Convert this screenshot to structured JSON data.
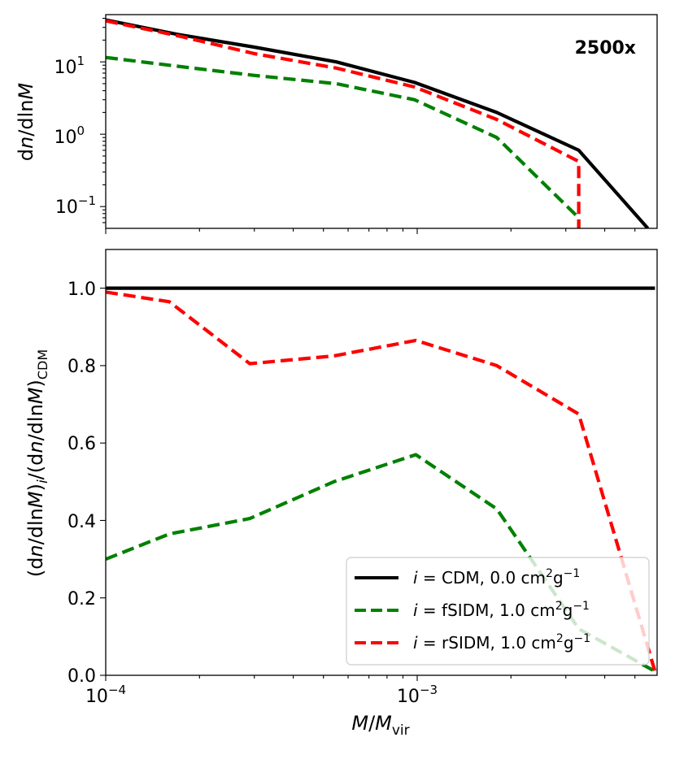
{
  "annotation": "2500x",
  "ticks": {
    "top_y_base": "10",
    "top_y_exps": [
      "1",
      "0",
      "−1"
    ],
    "x_base": "10",
    "x_exps": [
      "−4",
      "−3"
    ],
    "bottom_y": [
      "0.0",
      "0.2",
      "0.4",
      "0.6",
      "0.8",
      "1.0"
    ]
  },
  "labels": {
    "top_y": {
      "d1": "d",
      "n": "n",
      "mid": "/dln",
      "M": "M"
    },
    "bottom_y": {
      "p1": "(d",
      "n1": "n",
      "p2": "/dln",
      "M1": "M",
      "p3": ")",
      "i": "i",
      "p4": "/(d",
      "n2": "n",
      "p5": "/dln",
      "M2": "M",
      "p6": ")",
      "cdm": "CDM"
    },
    "x": {
      "M": "M",
      "slash": "/",
      "Mvir": "M",
      "vir": "vir"
    }
  },
  "legend": [
    {
      "prefix": "i",
      "eq": " =  ",
      "body": "CDM, 0.0 cm",
      "sup1": "2",
      "g": "g",
      "sup2": "−1",
      "color": "#000000",
      "dashed": false
    },
    {
      "prefix": "i",
      "eq": " =  ",
      "body": "fSIDM, 1.0 cm",
      "sup1": "2",
      "g": "g",
      "sup2": "−1",
      "color": "#008000",
      "dashed": true
    },
    {
      "prefix": "i",
      "eq": " =  ",
      "body": "rSIDM, 1.0 cm",
      "sup1": "2",
      "g": "g",
      "sup2": "−1",
      "color": "#ff0000",
      "dashed": true
    }
  ],
  "chart_data": [
    {
      "type": "line",
      "xscale": "log",
      "yscale": "log",
      "xlim": [
        0.0001,
        0.0058
      ],
      "ylim": [
        0.05,
        45
      ],
      "xlabel": "",
      "ylabel": "dn/dlnM",
      "series": [
        {
          "name": "i = CDM, 0.0 cm2g−1",
          "color": "#000000",
          "dashed": false,
          "x": [
            0.0001,
            0.00017,
            0.0003,
            0.00055,
            0.00098,
            0.0018,
            0.0033,
            0.0055
          ],
          "y": [
            38,
            24,
            16,
            10,
            5.2,
            2.0,
            0.6,
            0.05
          ]
        },
        {
          "name": "i = fSIDM, 1.0 cm2g−1",
          "color": "#008000",
          "dashed": true,
          "x": [
            0.0001,
            0.00017,
            0.0003,
            0.00055,
            0.00098,
            0.0018,
            0.0033,
            0.0033
          ],
          "y": [
            11.5,
            8.7,
            6.5,
            5.0,
            3.0,
            0.9,
            0.07,
            0.05
          ]
        },
        {
          "name": "i = rSIDM, 1.0 cm2g−1",
          "color": "#ff0000",
          "dashed": true,
          "x": [
            0.0001,
            0.00017,
            0.0003,
            0.00055,
            0.00098,
            0.0018,
            0.0033,
            0.0033
          ],
          "y": [
            37,
            23,
            13,
            8.2,
            4.5,
            1.6,
            0.42,
            0.05
          ]
        }
      ]
    },
    {
      "type": "line",
      "xscale": "log",
      "yscale": "linear",
      "xlim": [
        0.0001,
        0.0058
      ],
      "ylim": [
        0.0,
        1.1
      ],
      "xlabel": "M/Mvir",
      "ylabel": "(dn/dlnM)i/(dn/dlnM)CDM",
      "legend_position": "lower right",
      "series": [
        {
          "name": "i = CDM, 0.0 cm2g−1",
          "color": "#000000",
          "dashed": false,
          "x": [
            0.0001,
            0.0058
          ],
          "y": [
            1.0,
            1.0
          ]
        },
        {
          "name": "i = fSIDM, 1.0 cm2g−1",
          "color": "#008000",
          "dashed": true,
          "x": [
            0.0001,
            0.00016,
            0.00029,
            0.00054,
            0.00099,
            0.0018,
            0.0033,
            0.0058
          ],
          "y": [
            0.3,
            0.365,
            0.405,
            0.5,
            0.57,
            0.43,
            0.12,
            0.01
          ]
        },
        {
          "name": "i = rSIDM, 1.0 cm2g−1",
          "color": "#ff0000",
          "dashed": true,
          "x": [
            0.0001,
            0.00016,
            0.00029,
            0.00054,
            0.00099,
            0.0018,
            0.0033,
            0.0058
          ],
          "y": [
            0.99,
            0.965,
            0.805,
            0.825,
            0.865,
            0.8,
            0.675,
            0.01
          ]
        }
      ]
    }
  ]
}
